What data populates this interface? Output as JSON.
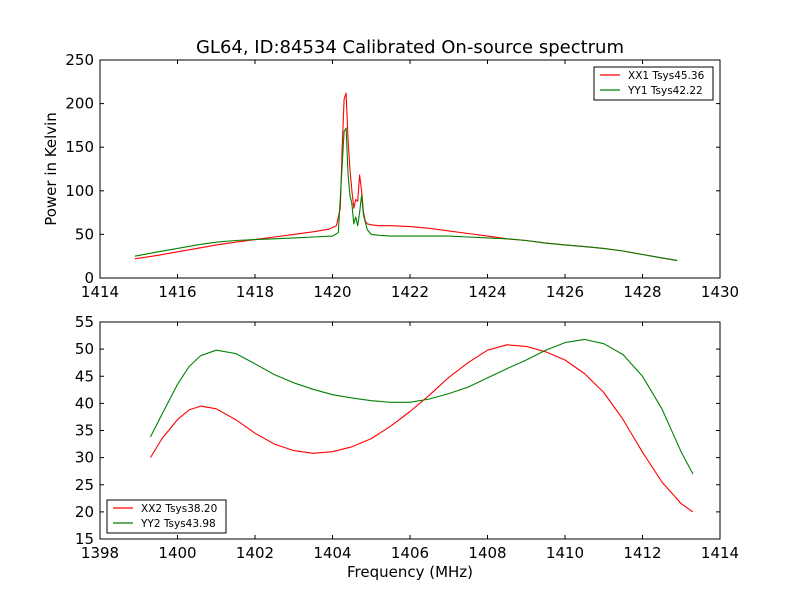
{
  "chart_data": [
    {
      "type": "line",
      "title": "GL64, ID:84534 Calibrated On-source spectrum",
      "xlabel": "",
      "ylabel": "Power in Kelvin",
      "xlim": [
        1414,
        1430
      ],
      "ylim": [
        0,
        250
      ],
      "xticks": [
        1414,
        1416,
        1418,
        1420,
        1422,
        1424,
        1426,
        1428,
        1430
      ],
      "yticks": [
        0,
        50,
        100,
        150,
        200,
        250
      ],
      "legend_position": "top-right",
      "series": [
        {
          "name": "XX1 Tsys45.36",
          "color": "#ff0000",
          "x": [
            1414.9,
            1415.5,
            1416.0,
            1416.5,
            1417.0,
            1417.5,
            1418.0,
            1418.5,
            1419.0,
            1419.5,
            1419.9,
            1420.1,
            1420.2,
            1420.25,
            1420.3,
            1420.35,
            1420.4,
            1420.45,
            1420.5,
            1420.55,
            1420.6,
            1420.65,
            1420.7,
            1420.75,
            1420.8,
            1420.85,
            1420.9,
            1421.0,
            1421.2,
            1421.5,
            1422.0,
            1422.5,
            1423.0,
            1423.5,
            1424.0,
            1424.5,
            1425.0,
            1425.5,
            1426.0,
            1426.5,
            1427.0,
            1427.5,
            1428.0,
            1428.5,
            1428.9
          ],
          "y": [
            22,
            26,
            30,
            34,
            38,
            41,
            44,
            47,
            50,
            53,
            56,
            60,
            80,
            150,
            205,
            212,
            160,
            125,
            100,
            80,
            90,
            88,
            118,
            100,
            75,
            65,
            62,
            61,
            60,
            60,
            59,
            57,
            54,
            51,
            48,
            45,
            43,
            40,
            38,
            36,
            34,
            31,
            27,
            23,
            20
          ]
        },
        {
          "name": "YY1 Tsys42.22",
          "color": "#008000",
          "x": [
            1414.9,
            1415.5,
            1416.0,
            1416.5,
            1417.0,
            1417.5,
            1418.0,
            1418.5,
            1419.0,
            1419.5,
            1420.0,
            1420.15,
            1420.25,
            1420.3,
            1420.35,
            1420.4,
            1420.45,
            1420.5,
            1420.55,
            1420.6,
            1420.65,
            1420.7,
            1420.75,
            1420.8,
            1420.9,
            1421.0,
            1421.2,
            1421.5,
            1422.0,
            1422.5,
            1423.0,
            1423.5,
            1424.0,
            1424.5,
            1425.0,
            1425.5,
            1426.0,
            1426.5,
            1427.0,
            1427.5,
            1428.0,
            1428.5,
            1428.9
          ],
          "y": [
            25,
            30,
            34,
            38,
            41,
            43,
            44,
            45,
            46,
            47,
            48,
            52,
            130,
            168,
            172,
            120,
            95,
            85,
            62,
            70,
            60,
            75,
            95,
            72,
            55,
            50,
            49,
            48,
            48,
            48,
            48,
            47,
            46,
            45,
            43,
            40,
            38,
            36,
            34,
            31,
            27,
            23,
            20
          ]
        }
      ]
    },
    {
      "type": "line",
      "title": "",
      "xlabel": "Frequency (MHz)",
      "ylabel": "",
      "xlim": [
        1398,
        1414
      ],
      "ylim": [
        15,
        55
      ],
      "xticks": [
        1398,
        1400,
        1402,
        1404,
        1406,
        1408,
        1410,
        1412,
        1414
      ],
      "yticks": [
        15,
        20,
        25,
        30,
        35,
        40,
        45,
        50,
        55
      ],
      "legend_position": "bottom-left",
      "series": [
        {
          "name": "XX2 Tsys38.20",
          "color": "#ff0000",
          "x": [
            1399.3,
            1399.6,
            1400.0,
            1400.3,
            1400.6,
            1401.0,
            1401.5,
            1402.0,
            1402.5,
            1403.0,
            1403.5,
            1404.0,
            1404.5,
            1405.0,
            1405.5,
            1406.0,
            1406.5,
            1407.0,
            1407.5,
            1408.0,
            1408.5,
            1409.0,
            1409.5,
            1410.0,
            1410.5,
            1411.0,
            1411.5,
            1412.0,
            1412.5,
            1413.0,
            1413.3
          ],
          "y": [
            30,
            33.5,
            37,
            38.8,
            39.5,
            39,
            37,
            34.5,
            32.5,
            31.3,
            30.8,
            31.1,
            32,
            33.5,
            35.8,
            38.5,
            41.5,
            44.8,
            47.5,
            49.8,
            50.8,
            50.5,
            49.5,
            48,
            45.5,
            42,
            37,
            31,
            25.5,
            21.5,
            20
          ]
        },
        {
          "name": "YY2 Tsys43.98",
          "color": "#008000",
          "x": [
            1399.3,
            1399.6,
            1400.0,
            1400.3,
            1400.6,
            1401.0,
            1401.5,
            1402.0,
            1402.5,
            1403.0,
            1403.5,
            1404.0,
            1404.5,
            1405.0,
            1405.5,
            1406.0,
            1406.5,
            1407.0,
            1407.5,
            1408.0,
            1408.5,
            1409.0,
            1409.5,
            1410.0,
            1410.5,
            1411.0,
            1411.5,
            1412.0,
            1412.5,
            1413.0,
            1413.3
          ],
          "y": [
            33.8,
            38,
            43.5,
            46.8,
            48.8,
            49.8,
            49.2,
            47.3,
            45.3,
            43.8,
            42.6,
            41.6,
            41,
            40.5,
            40.2,
            40.2,
            40.8,
            41.8,
            43,
            44.7,
            46.4,
            48,
            49.8,
            51.2,
            51.8,
            51,
            49,
            45,
            39,
            31,
            27
          ]
        }
      ]
    }
  ]
}
